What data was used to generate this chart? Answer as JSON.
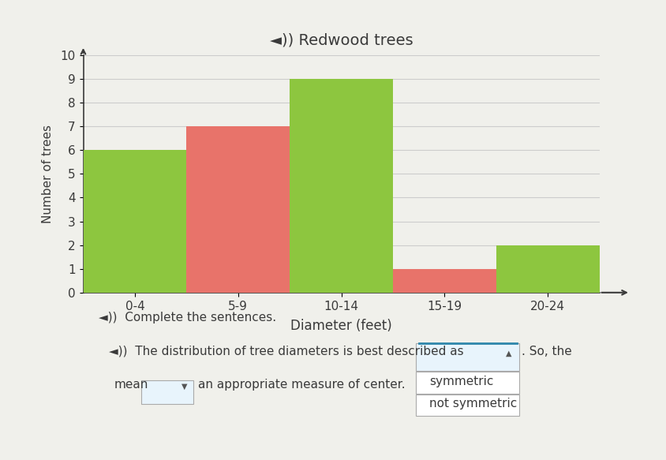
{
  "title": "Redwood trees",
  "xlabel": "Diameter (feet)",
  "ylabel": "Number of trees",
  "categories": [
    "0-4",
    "5-9",
    "10-14",
    "15-19",
    "20-24"
  ],
  "values": [
    6,
    7,
    9,
    1,
    2
  ],
  "bar_colors": [
    "#8dc63f",
    "#e8736a",
    "#8dc63f",
    "#e8736a",
    "#8dc63f"
  ],
  "ylim": [
    0,
    10
  ],
  "yticks": [
    0,
    1,
    2,
    3,
    4,
    5,
    6,
    7,
    8,
    9,
    10
  ],
  "bg_color": "#f0f0eb",
  "title_color": "#3a3a3a",
  "axis_color": "#3a3a3a",
  "grid_color": "#cccccc",
  "text1": "Complete the sentences.",
  "text2": "The distribution of tree diameters is best described as",
  "text3": ". So, the",
  "text4": "mean",
  "text5": "an appropriate measure of center.",
  "dropdown1_options": [
    "symmetric",
    "not symmetric"
  ],
  "speaker_color": "#2e86ab",
  "dropdown_bg": "#e8f4fc",
  "dropdown_border": "#aaaaaa",
  "option_bg": "#ffffff",
  "blue_line": "#2e86ab"
}
